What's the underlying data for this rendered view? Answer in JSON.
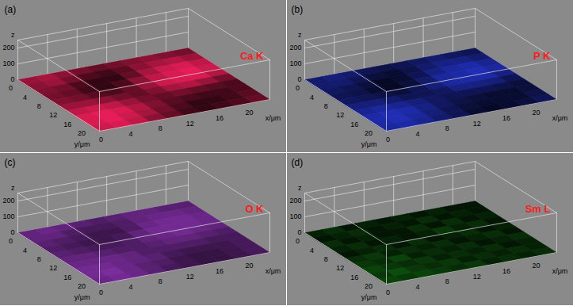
{
  "chart_data": [
    {
      "type": "heatmap",
      "panel": "(a)",
      "title": "Ca K",
      "xlabel": "x/μm",
      "ylabel": "y/μm",
      "zlabel": "z",
      "xlim": [
        0,
        23
      ],
      "ylim": [
        0,
        23
      ],
      "zlim": [
        0,
        250
      ],
      "xticks": [
        0,
        4,
        8,
        12,
        16,
        20
      ],
      "yticks": [
        0,
        4,
        8,
        12,
        16,
        20
      ],
      "zticks": [
        0,
        100,
        200
      ],
      "color": "#ff2060",
      "intensity_range": [
        0,
        100
      ],
      "cells": [
        [
          60,
          65,
          55,
          45,
          40,
          45,
          50,
          55,
          50,
          45
        ],
        [
          55,
          60,
          45,
          30,
          25,
          35,
          55,
          65,
          70,
          60
        ],
        [
          50,
          45,
          30,
          20,
          20,
          40,
          65,
          80,
          85,
          75
        ],
        [
          45,
          40,
          25,
          20,
          30,
          55,
          75,
          85,
          90,
          80
        ],
        [
          50,
          45,
          35,
          30,
          40,
          60,
          80,
          85,
          85,
          70
        ],
        [
          60,
          60,
          55,
          45,
          40,
          50,
          65,
          70,
          60,
          45
        ],
        [
          75,
          80,
          75,
          60,
          45,
          40,
          45,
          40,
          35,
          30
        ],
        [
          85,
          90,
          85,
          70,
          50,
          35,
          30,
          25,
          25,
          30
        ],
        [
          85,
          90,
          80,
          65,
          45,
          30,
          20,
          20,
          25,
          35
        ],
        [
          80,
          85,
          75,
          55,
          40,
          25,
          20,
          25,
          30,
          40
        ]
      ]
    },
    {
      "type": "heatmap",
      "panel": "(b)",
      "title": "P K",
      "xlabel": "x/μm",
      "ylabel": "y/μm",
      "zlabel": "z",
      "xlim": [
        0,
        23
      ],
      "ylim": [
        0,
        23
      ],
      "zlim": [
        0,
        250
      ],
      "xticks": [
        0,
        4,
        8,
        12,
        16,
        20
      ],
      "yticks": [
        0,
        4,
        8,
        12,
        16,
        20
      ],
      "zticks": [
        0,
        100,
        200
      ],
      "color": "#2a3cf0",
      "intensity_range": [
        0,
        100
      ],
      "cells": [
        [
          45,
          50,
          45,
          35,
          30,
          35,
          40,
          45,
          40,
          35
        ],
        [
          45,
          45,
          35,
          25,
          20,
          30,
          45,
          55,
          55,
          45
        ],
        [
          40,
          35,
          25,
          15,
          20,
          35,
          55,
          65,
          70,
          60
        ],
        [
          35,
          30,
          20,
          15,
          25,
          45,
          65,
          70,
          75,
          65
        ],
        [
          40,
          35,
          30,
          25,
          35,
          50,
          65,
          70,
          70,
          55
        ],
        [
          50,
          50,
          45,
          35,
          35,
          40,
          55,
          55,
          50,
          35
        ],
        [
          60,
          65,
          60,
          50,
          40,
          35,
          35,
          35,
          30,
          25
        ],
        [
          70,
          75,
          70,
          55,
          40,
          30,
          25,
          20,
          20,
          25
        ],
        [
          70,
          75,
          65,
          50,
          35,
          25,
          20,
          20,
          20,
          30
        ],
        [
          65,
          70,
          60,
          45,
          35,
          20,
          15,
          20,
          25,
          35
        ]
      ]
    },
    {
      "type": "heatmap",
      "panel": "(c)",
      "title": "O K",
      "xlabel": "x/μm",
      "ylabel": "y/μm",
      "zlabel": "z",
      "xlim": [
        0,
        23
      ],
      "ylim": [
        0,
        23
      ],
      "zlim": [
        0,
        250
      ],
      "xticks": [
        0,
        4,
        8,
        12,
        16,
        20
      ],
      "yticks": [
        0,
        4,
        8,
        12,
        16,
        20
      ],
      "zticks": [
        0,
        100,
        200
      ],
      "color": "#b040e0",
      "intensity_range": [
        0,
        100
      ],
      "cells": [
        [
          55,
          60,
          55,
          50,
          45,
          50,
          55,
          55,
          50,
          50
        ],
        [
          55,
          55,
          45,
          40,
          40,
          45,
          55,
          60,
          60,
          55
        ],
        [
          50,
          45,
          40,
          35,
          35,
          45,
          60,
          65,
          65,
          60
        ],
        [
          45,
          40,
          35,
          35,
          40,
          55,
          65,
          65,
          65,
          60
        ],
        [
          50,
          45,
          40,
          40,
          45,
          55,
          60,
          65,
          60,
          55
        ],
        [
          55,
          55,
          50,
          45,
          45,
          50,
          55,
          55,
          50,
          45
        ],
        [
          60,
          60,
          60,
          55,
          45,
          45,
          45,
          45,
          40,
          40
        ],
        [
          65,
          65,
          60,
          55,
          50,
          40,
          35,
          35,
          35,
          40
        ],
        [
          65,
          70,
          60,
          50,
          45,
          35,
          30,
          30,
          35,
          40
        ],
        [
          60,
          65,
          60,
          50,
          40,
          35,
          30,
          30,
          35,
          40
        ]
      ]
    },
    {
      "type": "heatmap",
      "panel": "(d)",
      "title": "Sm L",
      "xlabel": "x/μm",
      "ylabel": "y/μm",
      "zlabel": "z",
      "xlim": [
        0,
        23
      ],
      "ylim": [
        0,
        23
      ],
      "zlim": [
        0,
        250
      ],
      "xticks": [
        0,
        4,
        8,
        12,
        16,
        20
      ],
      "yticks": [
        0,
        4,
        8,
        12,
        16,
        20
      ],
      "zticks": [
        0,
        100,
        200
      ],
      "color": "#22dd22",
      "intensity_range": [
        0,
        100
      ],
      "cells": [
        [
          15,
          20,
          10,
          15,
          10,
          15,
          10,
          15,
          10,
          10
        ],
        [
          10,
          15,
          20,
          10,
          15,
          10,
          20,
          10,
          15,
          10
        ],
        [
          20,
          10,
          15,
          10,
          10,
          20,
          10,
          20,
          10,
          15
        ],
        [
          15,
          20,
          10,
          15,
          10,
          15,
          25,
          15,
          20,
          10
        ],
        [
          10,
          15,
          20,
          10,
          20,
          10,
          15,
          20,
          10,
          15
        ],
        [
          20,
          25,
          15,
          20,
          15,
          20,
          10,
          15,
          20,
          10
        ],
        [
          25,
          20,
          30,
          15,
          20,
          15,
          20,
          10,
          15,
          20
        ],
        [
          30,
          25,
          20,
          25,
          15,
          20,
          15,
          20,
          10,
          15
        ],
        [
          25,
          35,
          25,
          20,
          25,
          15,
          20,
          15,
          20,
          15
        ],
        [
          30,
          25,
          30,
          25,
          20,
          25,
          15,
          20,
          15,
          20
        ]
      ]
    }
  ]
}
